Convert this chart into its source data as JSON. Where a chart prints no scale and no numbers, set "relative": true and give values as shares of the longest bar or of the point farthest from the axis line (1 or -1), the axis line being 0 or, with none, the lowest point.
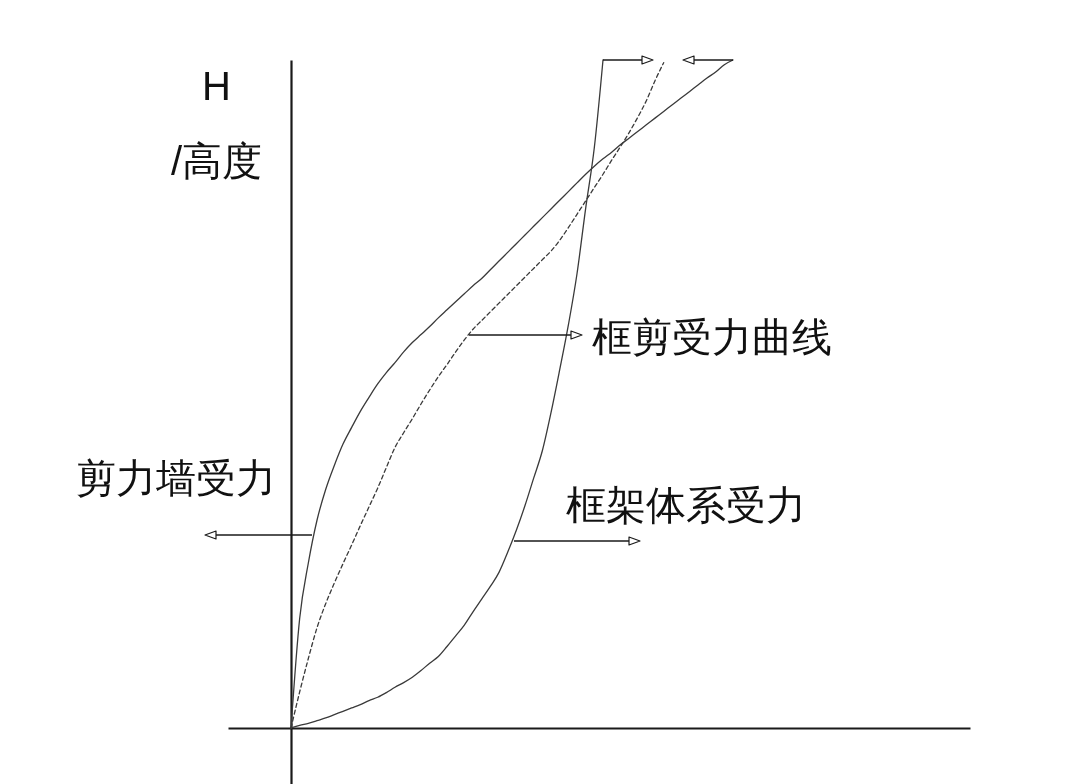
{
  "chart_data": {
    "type": "line",
    "ylabel": "H /高度",
    "relative": true,
    "categories": [
      null,
      null,
      null,
      null,
      null,
      null,
      null,
      null,
      null,
      null,
      null,
      null,
      null,
      null,
      null,
      null,
      null,
      null,
      null,
      null,
      null,
      null,
      null,
      null,
      null,
      null,
      null,
      null,
      null,
      null,
      null,
      null,
      null,
      null,
      null,
      null,
      null,
      null,
      null,
      null,
      null,
      null,
      null,
      null,
      null,
      null,
      null,
      null,
      null,
      null,
      null,
      null
    ],
    "annotations": [
      "框剪受力曲线",
      "剪力墙受力",
      "框架体系受力"
    ],
    "series": [
      {
        "color": "#3a3a3a",
        "line_style": "solid",
        "values": [
          0,
          0.164,
          0.247,
          0.311,
          0.357,
          0.393,
          0.425,
          0.45,
          0.474,
          0.495,
          0.515,
          0.532,
          0.547,
          0.563,
          0.577,
          0.589,
          0.601,
          0.614,
          0.626,
          0.638,
          0.65,
          0.662,
          0.673,
          0.686,
          0.699,
          0.712,
          0.725,
          0.738,
          0.751,
          0.764,
          0.777,
          0.79,
          0.803,
          0.816,
          0.829,
          0.841,
          0.852,
          0.862,
          0.873,
          0.883,
          0.893,
          0.903,
          0.913,
          0.923,
          0.933,
          0.943,
          0.953,
          0.963,
          0.973,
          0.982,
          0.993,
          1.0
        ]
      },
      {
        "color": "#3a3a3a",
        "line_style": "dashed",
        "values": [
          0,
          0.054,
          0.104,
          0.15,
          0.186,
          0.217,
          0.246,
          0.274,
          0.303,
          0.331,
          0.359,
          0.39,
          0.42,
          0.442,
          0.463,
          0.485,
          0.506,
          0.526,
          0.544,
          0.563,
          0.581,
          0.597,
          0.61,
          0.623,
          0.636,
          0.649,
          0.662,
          0.675,
          0.688,
          0.701,
          0.714,
          0.73,
          0.749,
          0.769,
          0.789,
          0.809,
          0.829,
          0.85,
          0.87,
          0.891,
          0.914,
          0.939,
          0.969,
          0.996,
          null,
          null,
          null,
          null,
          null,
          null,
          null,
          null
        ]
      },
      {
        "color": "#3a3a3a",
        "line_style": "solid",
        "values": [
          0,
          0.004,
          0.007,
          0.011,
          0.015,
          0.02,
          0.025,
          0.03,
          0.035,
          0.041,
          0.046,
          0.053,
          0.061,
          0.068,
          0.076,
          0.086,
          0.097,
          0.107,
          0.122,
          0.138,
          0.154,
          0.174,
          0.193,
          0.212,
          0.233,
          0.263,
          0.296,
          0.333,
          0.374,
          0.415,
          0.472,
          0.536,
          0.603,
          0.68,
          0.778,
          0.869,
          1.0,
          null,
          null,
          null,
          null,
          null,
          null,
          null,
          null,
          null,
          null,
          null,
          null,
          null,
          null,
          null
        ]
      }
    ]
  }
}
